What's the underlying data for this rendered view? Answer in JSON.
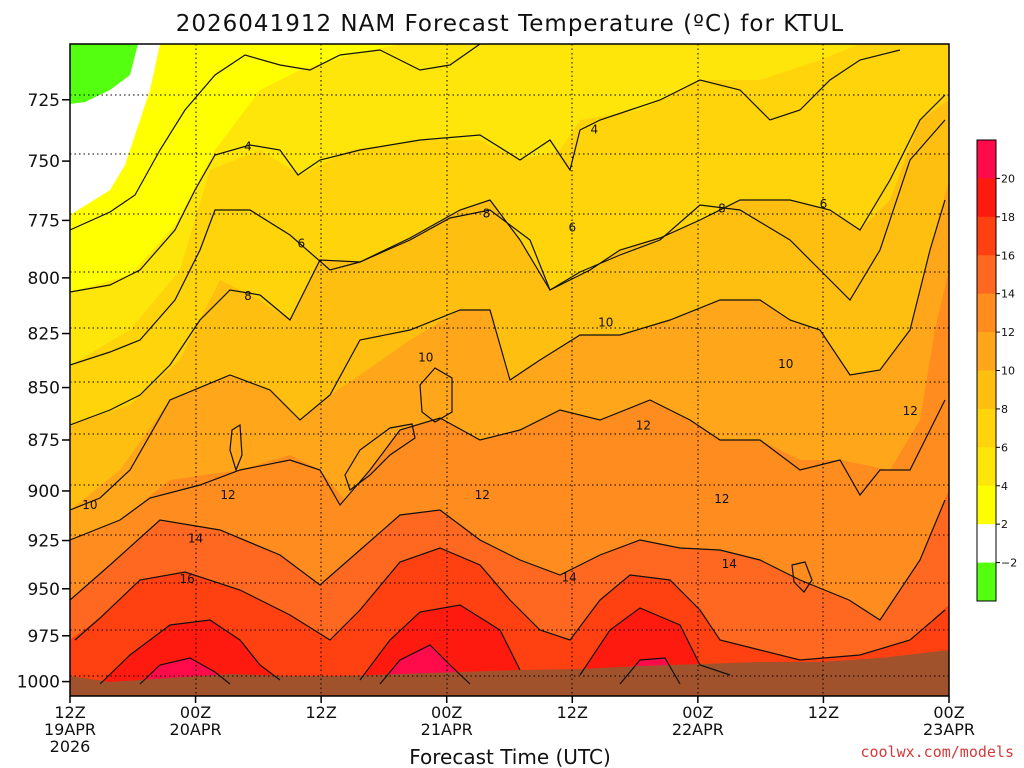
{
  "chart_data": {
    "type": "heatmap",
    "title": "2026041912 NAM Forecast Temperature (ºC) for KTUL",
    "xlabel": "Forecast Time (UTC)",
    "ylabel": "",
    "x_ticks": [
      {
        "hour": 0,
        "lines": [
          "12Z",
          "19APR",
          "2026"
        ]
      },
      {
        "hour": 12,
        "lines": [
          "00Z",
          "20APR"
        ]
      },
      {
        "hour": 24,
        "lines": [
          "12Z"
        ]
      },
      {
        "hour": 36,
        "lines": [
          "00Z",
          "21APR"
        ]
      },
      {
        "hour": 48,
        "lines": [
          "12Z"
        ]
      },
      {
        "hour": 60,
        "lines": [
          "00Z",
          "22APR"
        ]
      },
      {
        "hour": 72,
        "lines": [
          "12Z"
        ]
      },
      {
        "hour": 84,
        "lines": [
          "00Z",
          "23APR"
        ]
      }
    ],
    "xlim_hours": [
      0,
      84
    ],
    "y_ticks": [
      725,
      750,
      775,
      800,
      825,
      850,
      875,
      900,
      925,
      950,
      975,
      1000
    ],
    "ylim_hPa": [
      1008,
      703
    ],
    "colorbar": {
      "ticks": [
        "20",
        "18",
        "16",
        "14",
        "12",
        "10",
        "8",
        "6",
        "4",
        "2",
        "−2"
      ],
      "colors": [
        "#ff0a4a",
        "#ff1a10",
        "#ff4010",
        "#ff6820",
        "#ff8c1e",
        "#ffa61a",
        "#ffbf10",
        "#ffd40a",
        "#ffe60a",
        "#ffff00",
        "#ffffff",
        "#55ff10"
      ]
    },
    "surface_color": "#a0522d",
    "contour_labels": [
      {
        "t": "4",
        "h": 17.0,
        "p": 744
      },
      {
        "t": "4",
        "h": 50.1,
        "p": 737
      },
      {
        "t": "6",
        "h": 22.1,
        "p": 785
      },
      {
        "t": "6",
        "h": 48.0,
        "p": 778
      },
      {
        "t": "6",
        "h": 72.0,
        "p": 768
      },
      {
        "t": "8",
        "h": 17.0,
        "p": 808
      },
      {
        "t": "8",
        "h": 39.8,
        "p": 772
      },
      {
        "t": "8",
        "h": 62.3,
        "p": 770
      },
      {
        "t": "10",
        "h": 1.9,
        "p": 907
      },
      {
        "t": "10",
        "h": 34.0,
        "p": 836
      },
      {
        "t": "10",
        "h": 51.2,
        "p": 820
      },
      {
        "t": "10",
        "h": 68.4,
        "p": 839
      },
      {
        "t": "12",
        "h": 15.1,
        "p": 902
      },
      {
        "t": "12",
        "h": 39.4,
        "p": 902
      },
      {
        "t": "12",
        "h": 54.8,
        "p": 868
      },
      {
        "t": "12",
        "h": 62.3,
        "p": 904
      },
      {
        "t": "12",
        "h": 80.3,
        "p": 861
      },
      {
        "t": "14",
        "h": 12.0,
        "p": 924
      },
      {
        "t": "14",
        "h": 47.7,
        "p": 944
      },
      {
        "t": "14",
        "h": 63.0,
        "p": 937
      },
      {
        "t": "16",
        "h": 11.2,
        "p": 945
      }
    ]
  },
  "credit": "coolwx.com/models"
}
